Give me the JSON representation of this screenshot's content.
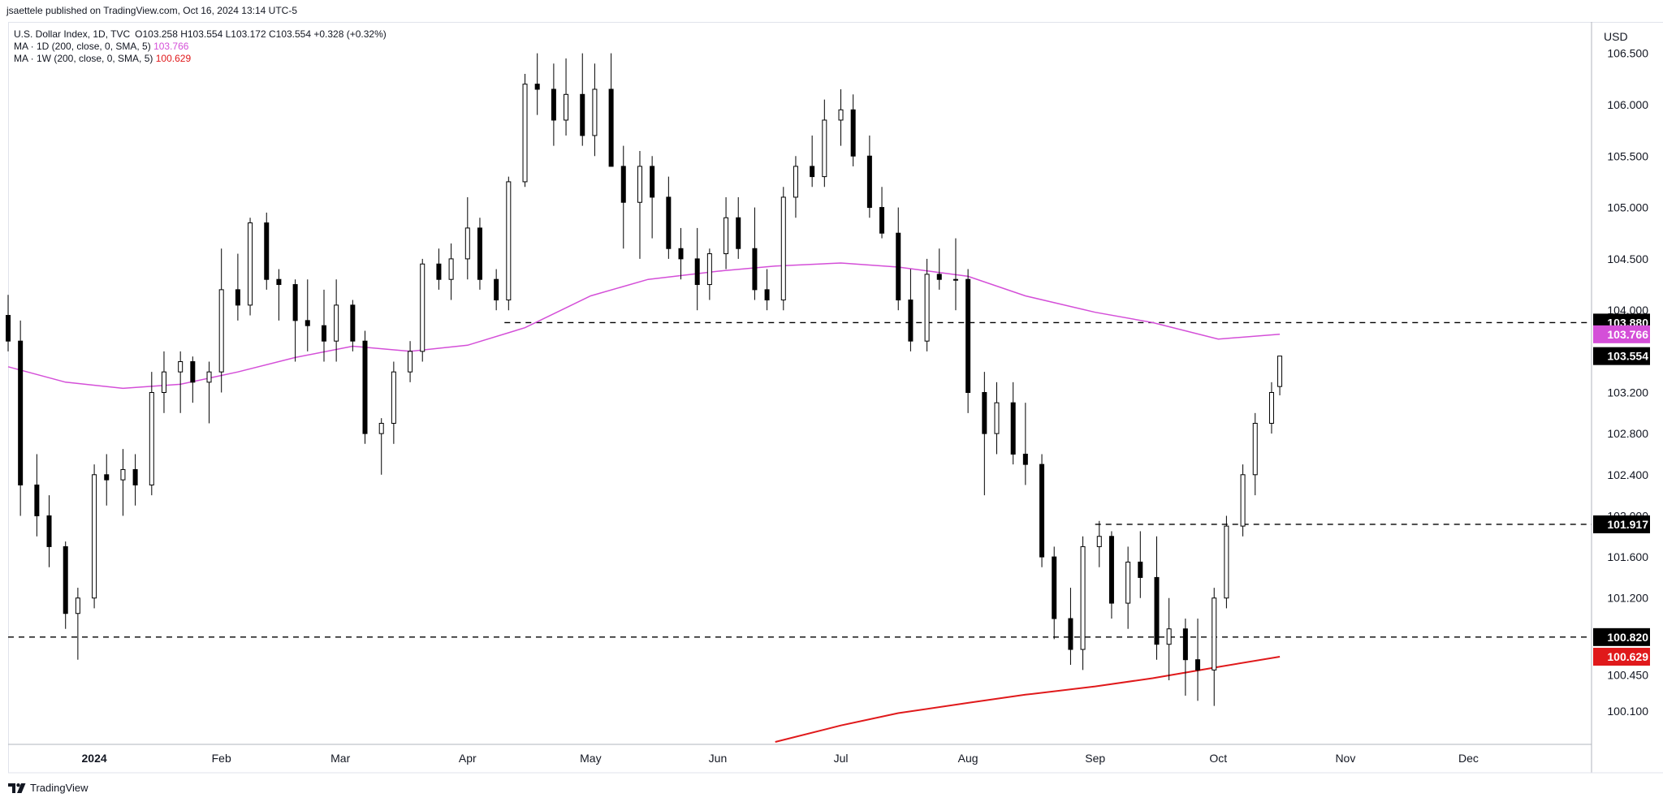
{
  "header": {
    "publish_line": "jsaettele published on TradingView.com, Oct 16, 2024 13:14 UTC-5"
  },
  "legend": {
    "symbol": "U.S. Dollar Index, 1D, TVC",
    "ohlc": "O103.258 H103.554 L103.172 C103.554 +0.328 (+0.32%)",
    "ma_daily_label": "MA · 1D (200, close, 0, SMA, 5)",
    "ma_daily_value": "103.766",
    "ma_weekly_label": "MA · 1W (200, close, 0, SMA, 5)",
    "ma_weekly_value": "100.629"
  },
  "price_axis": {
    "currency": "USD"
  },
  "footer": {
    "brand": "TradingView"
  },
  "colors": {
    "ma_daily": "#d44fd8",
    "ma_weekly": "#e0191b",
    "candle": "#000000",
    "level_line": "#000000",
    "axis_text": "#131722"
  },
  "chart_data": {
    "type": "candlestick",
    "title": "U.S. Dollar Index, 1D, TVC",
    "ylim": [
      99.8,
      106.75
    ],
    "y_ticks": [
      100.1,
      100.45,
      100.82,
      101.2,
      101.6,
      102.0,
      102.4,
      102.8,
      103.2,
      103.6,
      104.0,
      104.5,
      105.0,
      105.5,
      106.0,
      106.5
    ],
    "x_range": [
      "2023-12-11",
      "2024-12-31"
    ],
    "x_tick_labels": [
      {
        "date": "2024-01-01",
        "label": "2024"
      },
      {
        "date": "2024-02-01",
        "label": "Feb"
      },
      {
        "date": "2024-03-01",
        "label": "Mar"
      },
      {
        "date": "2024-04-01",
        "label": "Apr"
      },
      {
        "date": "2024-05-01",
        "label": "May"
      },
      {
        "date": "2024-06-01",
        "label": "Jun"
      },
      {
        "date": "2024-07-01",
        "label": "Jul"
      },
      {
        "date": "2024-08-01",
        "label": "Aug"
      },
      {
        "date": "2024-09-01",
        "label": "Sep"
      },
      {
        "date": "2024-10-01",
        "label": "Oct"
      },
      {
        "date": "2024-11-01",
        "label": "Nov"
      },
      {
        "date": "2024-12-01",
        "label": "Dec"
      }
    ],
    "last_price": {
      "value": 103.554,
      "label": "103.554"
    },
    "horizontal_levels": [
      {
        "value": 103.88,
        "label": "103.880",
        "start": "2024-04-10"
      },
      {
        "value": 101.917,
        "label": "101.917",
        "start": "2024-09-01"
      },
      {
        "value": 100.82,
        "label": "100.820",
        "start": "2023-12-11"
      }
    ],
    "ma_labels": [
      {
        "value": 103.766,
        "label": "103.766",
        "series": "ma_daily"
      },
      {
        "value": 100.629,
        "label": "100.629",
        "series": "ma_weekly"
      }
    ],
    "ma_daily": [
      [
        "2023-12-11",
        103.45
      ],
      [
        "2023-12-25",
        103.3
      ],
      [
        "2024-01-08",
        103.24
      ],
      [
        "2024-01-22",
        103.28
      ],
      [
        "2024-02-05",
        103.4
      ],
      [
        "2024-02-19",
        103.54
      ],
      [
        "2024-03-04",
        103.65
      ],
      [
        "2024-03-18",
        103.6
      ],
      [
        "2024-04-01",
        103.66
      ],
      [
        "2024-04-15",
        103.83
      ],
      [
        "2024-05-01",
        104.14
      ],
      [
        "2024-05-15",
        104.3
      ],
      [
        "2024-06-01",
        104.38
      ],
      [
        "2024-06-15",
        104.43
      ],
      [
        "2024-07-01",
        104.46
      ],
      [
        "2024-07-15",
        104.42
      ],
      [
        "2024-08-01",
        104.33
      ],
      [
        "2024-08-15",
        104.14
      ],
      [
        "2024-09-01",
        103.98
      ],
      [
        "2024-09-15",
        103.88
      ],
      [
        "2024-10-01",
        103.72
      ],
      [
        "2024-10-16",
        103.766
      ]
    ],
    "ma_weekly": [
      [
        "2024-06-15",
        99.8
      ],
      [
        "2024-07-01",
        99.96
      ],
      [
        "2024-07-15",
        100.08
      ],
      [
        "2024-08-01",
        100.18
      ],
      [
        "2024-08-15",
        100.26
      ],
      [
        "2024-09-01",
        100.34
      ],
      [
        "2024-09-15",
        100.42
      ],
      [
        "2024-10-01",
        100.53
      ],
      [
        "2024-10-16",
        100.629
      ]
    ],
    "ohlc": [
      [
        "2023-12-11",
        103.95,
        104.15,
        103.6,
        103.7
      ],
      [
        "2023-12-14",
        103.7,
        103.9,
        102.0,
        102.3
      ],
      [
        "2023-12-18",
        102.3,
        102.6,
        101.8,
        102.0
      ],
      [
        "2023-12-21",
        102.0,
        102.2,
        101.5,
        101.7
      ],
      [
        "2023-12-25",
        101.7,
        101.75,
        100.9,
        101.05
      ],
      [
        "2023-12-28",
        101.05,
        101.3,
        100.6,
        101.2
      ],
      [
        "2024-01-01",
        101.2,
        102.5,
        101.1,
        102.4
      ],
      [
        "2024-01-04",
        102.4,
        102.6,
        102.1,
        102.35
      ],
      [
        "2024-01-08",
        102.35,
        102.65,
        102.0,
        102.45
      ],
      [
        "2024-01-11",
        102.45,
        102.6,
        102.1,
        102.3
      ],
      [
        "2024-01-15",
        102.3,
        103.4,
        102.2,
        103.2
      ],
      [
        "2024-01-18",
        103.2,
        103.6,
        103.0,
        103.4
      ],
      [
        "2024-01-22",
        103.4,
        103.6,
        103.0,
        103.5
      ],
      [
        "2024-01-25",
        103.5,
        103.55,
        103.1,
        103.3
      ],
      [
        "2024-01-29",
        103.3,
        103.5,
        102.9,
        103.4
      ],
      [
        "2024-02-01",
        103.4,
        104.6,
        103.2,
        104.2
      ],
      [
        "2024-02-05",
        104.2,
        104.55,
        103.9,
        104.05
      ],
      [
        "2024-02-08",
        104.05,
        104.9,
        103.95,
        104.85
      ],
      [
        "2024-02-12",
        104.85,
        104.95,
        104.2,
        104.3
      ],
      [
        "2024-02-15",
        104.3,
        104.4,
        103.9,
        104.25
      ],
      [
        "2024-02-19",
        104.25,
        104.3,
        103.5,
        103.9
      ],
      [
        "2024-02-22",
        103.9,
        104.3,
        103.6,
        103.85
      ],
      [
        "2024-02-26",
        103.85,
        104.2,
        103.5,
        103.7
      ],
      [
        "2024-02-29",
        103.7,
        104.3,
        103.5,
        104.05
      ],
      [
        "2024-03-04",
        104.05,
        104.1,
        103.6,
        103.7
      ],
      [
        "2024-03-07",
        103.7,
        103.8,
        102.7,
        102.8
      ],
      [
        "2024-03-11",
        102.8,
        102.95,
        102.4,
        102.9
      ],
      [
        "2024-03-14",
        102.9,
        103.5,
        102.7,
        103.4
      ],
      [
        "2024-03-18",
        103.4,
        103.7,
        103.3,
        103.6
      ],
      [
        "2024-03-21",
        103.6,
        104.5,
        103.5,
        104.45
      ],
      [
        "2024-03-25",
        104.45,
        104.6,
        104.2,
        104.3
      ],
      [
        "2024-03-28",
        104.3,
        104.65,
        104.1,
        104.5
      ],
      [
        "2024-04-01",
        104.5,
        105.1,
        104.3,
        104.8
      ],
      [
        "2024-04-04",
        104.8,
        104.9,
        104.2,
        104.3
      ],
      [
        "2024-04-08",
        104.3,
        104.4,
        104.0,
        104.1
      ],
      [
        "2024-04-11",
        104.1,
        105.3,
        104.0,
        105.25
      ],
      [
        "2024-04-15",
        105.25,
        106.3,
        105.2,
        106.2
      ],
      [
        "2024-04-18",
        106.2,
        106.5,
        105.9,
        106.15
      ],
      [
        "2024-04-22",
        106.15,
        106.4,
        105.6,
        105.85
      ],
      [
        "2024-04-25",
        105.85,
        106.45,
        105.7,
        106.1
      ],
      [
        "2024-04-29",
        106.1,
        106.5,
        105.6,
        105.7
      ],
      [
        "2024-05-02",
        105.7,
        106.4,
        105.5,
        106.15
      ],
      [
        "2024-05-06",
        106.15,
        106.5,
        105.4,
        105.4
      ],
      [
        "2024-05-09",
        105.4,
        105.6,
        104.6,
        105.05
      ],
      [
        "2024-05-13",
        105.05,
        105.55,
        104.5,
        105.4
      ],
      [
        "2024-05-16",
        105.4,
        105.5,
        104.7,
        105.1
      ],
      [
        "2024-05-20",
        105.1,
        105.3,
        104.5,
        104.6
      ],
      [
        "2024-05-23",
        104.6,
        104.8,
        104.3,
        104.5
      ],
      [
        "2024-05-27",
        104.5,
        104.8,
        104.0,
        104.25
      ],
      [
        "2024-05-30",
        104.25,
        104.6,
        104.1,
        104.55
      ],
      [
        "2024-06-03",
        104.55,
        105.1,
        104.4,
        104.9
      ],
      [
        "2024-06-06",
        104.9,
        105.1,
        104.5,
        104.6
      ],
      [
        "2024-06-10",
        104.6,
        105.0,
        104.1,
        104.2
      ],
      [
        "2024-06-13",
        104.2,
        104.4,
        104.0,
        104.1
      ],
      [
        "2024-06-17",
        104.1,
        105.2,
        104.0,
        105.1
      ],
      [
        "2024-06-20",
        105.1,
        105.5,
        104.9,
        105.4
      ],
      [
        "2024-06-24",
        105.4,
        105.7,
        105.2,
        105.3
      ],
      [
        "2024-06-27",
        105.3,
        106.05,
        105.2,
        105.85
      ],
      [
        "2024-07-01",
        105.85,
        106.15,
        105.6,
        105.95
      ],
      [
        "2024-07-04",
        105.95,
        106.1,
        105.4,
        105.5
      ],
      [
        "2024-07-08",
        105.5,
        105.7,
        104.9,
        105.0
      ],
      [
        "2024-07-11",
        105.0,
        105.2,
        104.7,
        104.75
      ],
      [
        "2024-07-15",
        104.75,
        105.0,
        104.0,
        104.1
      ],
      [
        "2024-07-18",
        104.1,
        104.4,
        103.6,
        103.7
      ],
      [
        "2024-07-22",
        103.7,
        104.5,
        103.6,
        104.35
      ],
      [
        "2024-07-25",
        104.35,
        104.6,
        104.2,
        104.3
      ],
      [
        "2024-07-29",
        104.3,
        104.7,
        104.0,
        104.3
      ],
      [
        "2024-08-01",
        104.3,
        104.4,
        103.0,
        103.2
      ],
      [
        "2024-08-05",
        103.2,
        103.4,
        102.2,
        102.8
      ],
      [
        "2024-08-08",
        102.8,
        103.3,
        102.6,
        103.1
      ],
      [
        "2024-08-12",
        103.1,
        103.3,
        102.5,
        102.6
      ],
      [
        "2024-08-15",
        102.6,
        103.1,
        102.3,
        102.5
      ],
      [
        "2024-08-19",
        102.5,
        102.6,
        101.5,
        101.6
      ],
      [
        "2024-08-22",
        101.6,
        101.7,
        100.8,
        101.0
      ],
      [
        "2024-08-26",
        101.0,
        101.3,
        100.55,
        100.7
      ],
      [
        "2024-08-29",
        100.7,
        101.8,
        100.5,
        101.7
      ],
      [
        "2024-09-02",
        101.7,
        101.95,
        101.5,
        101.8
      ],
      [
        "2024-09-05",
        101.8,
        101.85,
        101.0,
        101.15
      ],
      [
        "2024-09-09",
        101.15,
        101.7,
        100.9,
        101.55
      ],
      [
        "2024-09-12",
        101.55,
        101.85,
        101.2,
        101.4
      ],
      [
        "2024-09-16",
        101.4,
        101.8,
        100.6,
        100.75
      ],
      [
        "2024-09-19",
        100.75,
        101.2,
        100.4,
        100.9
      ],
      [
        "2024-09-23",
        100.9,
        101.0,
        100.25,
        100.6
      ],
      [
        "2024-09-26",
        100.6,
        101.0,
        100.2,
        100.5
      ],
      [
        "2024-09-30",
        100.5,
        101.3,
        100.15,
        101.2
      ],
      [
        "2024-10-03",
        101.2,
        102.0,
        101.1,
        101.9
      ],
      [
        "2024-10-07",
        101.9,
        102.5,
        101.8,
        102.4
      ],
      [
        "2024-10-10",
        102.4,
        103.0,
        102.2,
        102.9
      ],
      [
        "2024-10-14",
        102.9,
        103.3,
        102.8,
        103.2
      ],
      [
        "2024-10-16",
        103.258,
        103.554,
        103.172,
        103.554
      ]
    ]
  }
}
